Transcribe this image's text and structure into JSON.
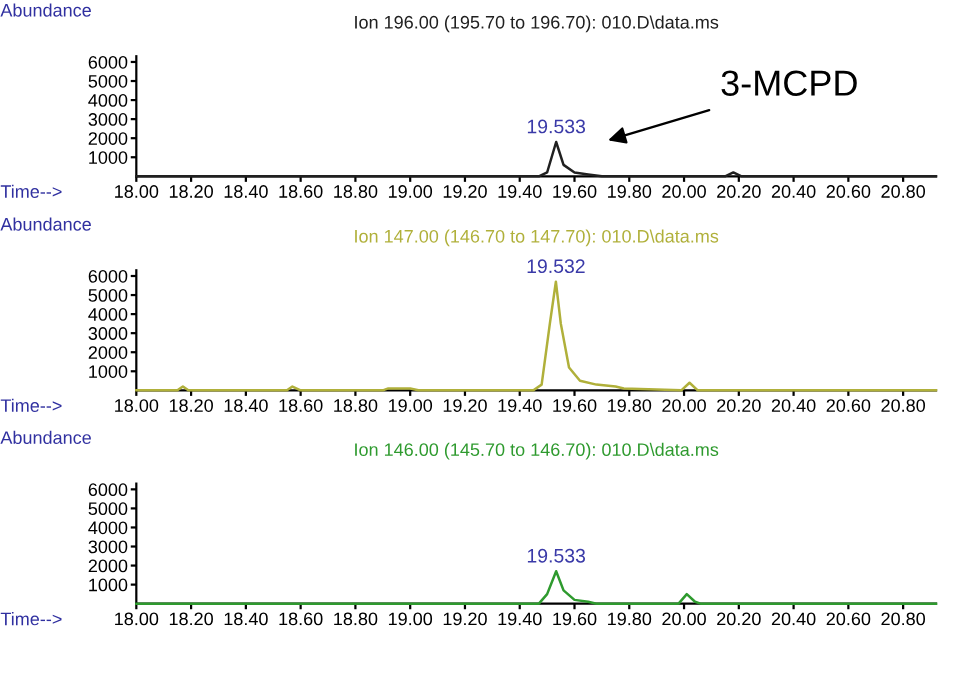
{
  "chart_data": [
    {
      "type": "line",
      "title": "Ion 196.00 (195.70 to 196.70): 010.D\\data.ms",
      "xlabel": "Time-->",
      "ylabel": "Abundance",
      "xlim": [
        18.0,
        20.92
      ],
      "xticks": [
        {
          "value": 18.0,
          "label": "18.00"
        },
        {
          "value": 18.2,
          "label": "18.20"
        },
        {
          "value": 18.4,
          "label": "18.40"
        },
        {
          "value": 18.6,
          "label": "18.60"
        },
        {
          "value": 18.8,
          "label": "18.80"
        },
        {
          "value": 19.0,
          "label": "19.00"
        },
        {
          "value": 19.2,
          "label": "19.20"
        },
        {
          "value": 19.4,
          "label": "19.40"
        },
        {
          "value": 19.6,
          "label": "19.60"
        },
        {
          "value": 19.8,
          "label": "19.80"
        },
        {
          "value": 20.0,
          "label": "20.00"
        },
        {
          "value": 20.2,
          "label": "20.20"
        },
        {
          "value": 20.4,
          "label": "20.40"
        },
        {
          "value": 20.6,
          "label": "20.60"
        },
        {
          "value": 20.8,
          "label": "20.80"
        }
      ],
      "ylim": [
        0,
        6300
      ],
      "yticks": [
        1000,
        2000,
        3000,
        4000,
        5000,
        6000
      ],
      "series": [
        {
          "color": "#202020",
          "x": [
            18.0,
            19.47,
            19.5,
            19.533,
            19.56,
            19.6,
            19.65,
            19.7,
            20.15,
            20.18,
            20.21,
            20.92
          ],
          "values": [
            0,
            0,
            200,
            1800,
            600,
            200,
            100,
            0,
            0,
            200,
            0,
            0
          ]
        }
      ],
      "annotations": [
        "19.533",
        "3-MCPD"
      ]
    },
    {
      "type": "line",
      "title": "Ion 147.00 (146.70 to 147.70): 010.D\\data.ms",
      "xlabel": "Time-->",
      "ylabel": "Abundance",
      "xlim": [
        18.0,
        20.92
      ],
      "xticks": [
        {
          "value": 18.0,
          "label": "18.00"
        },
        {
          "value": 18.2,
          "label": "18.20"
        },
        {
          "value": 18.4,
          "label": "18.40"
        },
        {
          "value": 18.6,
          "label": "18.60"
        },
        {
          "value": 18.8,
          "label": "18.80"
        },
        {
          "value": 19.0,
          "label": "19.00"
        },
        {
          "value": 19.2,
          "label": "19.20"
        },
        {
          "value": 19.4,
          "label": "19.40"
        },
        {
          "value": 19.6,
          "label": "19.60"
        },
        {
          "value": 19.8,
          "label": "19.80"
        },
        {
          "value": 20.0,
          "label": "20.00"
        },
        {
          "value": 20.2,
          "label": "20.20"
        },
        {
          "value": 20.4,
          "label": "20.40"
        },
        {
          "value": 20.6,
          "label": "20.60"
        },
        {
          "value": 20.8,
          "label": "20.80"
        }
      ],
      "ylim": [
        0,
        6300
      ],
      "yticks": [
        1000,
        2000,
        3000,
        4000,
        5000,
        6000
      ],
      "series": [
        {
          "color": "#b0b03a",
          "x": [
            18.0,
            18.15,
            18.17,
            18.19,
            18.55,
            18.57,
            18.6,
            18.9,
            18.92,
            19.0,
            19.03,
            19.45,
            19.48,
            19.51,
            19.532,
            19.55,
            19.58,
            19.62,
            19.68,
            19.75,
            19.78,
            19.99,
            20.02,
            20.05,
            20.92
          ],
          "values": [
            0,
            0,
            200,
            0,
            0,
            200,
            0,
            0,
            100,
            100,
            0,
            0,
            300,
            3500,
            5700,
            3500,
            1200,
            500,
            300,
            200,
            100,
            0,
            400,
            0,
            0
          ]
        }
      ],
      "annotations": [
        "19.532"
      ]
    },
    {
      "type": "line",
      "title": "Ion 146.00 (145.70 to 146.70): 010.D\\data.ms",
      "xlabel": "Time-->",
      "ylabel": "Abundance",
      "xlim": [
        18.0,
        20.92
      ],
      "xticks": [
        {
          "value": 18.0,
          "label": "18.00"
        },
        {
          "value": 18.2,
          "label": "18.20"
        },
        {
          "value": 18.4,
          "label": "18.40"
        },
        {
          "value": 18.6,
          "label": "18.60"
        },
        {
          "value": 18.8,
          "label": "18.80"
        },
        {
          "value": 19.0,
          "label": "19.00"
        },
        {
          "value": 19.2,
          "label": "19.20"
        },
        {
          "value": 19.4,
          "label": "19.40"
        },
        {
          "value": 19.6,
          "label": "19.60"
        },
        {
          "value": 19.8,
          "label": "19.80"
        },
        {
          "value": 20.0,
          "label": "20.00"
        },
        {
          "value": 20.2,
          "label": "20.20"
        },
        {
          "value": 20.4,
          "label": "20.40"
        },
        {
          "value": 20.6,
          "label": "20.60"
        },
        {
          "value": 20.8,
          "label": "20.80"
        }
      ],
      "ylim": [
        0,
        6300
      ],
      "yticks": [
        1000,
        2000,
        3000,
        4000,
        5000,
        6000
      ],
      "series": [
        {
          "color": "#2e9a2e",
          "x": [
            18.0,
            19.47,
            19.5,
            19.533,
            19.56,
            19.6,
            19.65,
            19.68,
            19.98,
            20.01,
            20.04,
            20.06,
            20.92
          ],
          "values": [
            0,
            0,
            500,
            1700,
            700,
            200,
            100,
            0,
            0,
            500,
            100,
            0,
            0
          ]
        }
      ],
      "annotations": [
        "19.533"
      ]
    }
  ]
}
